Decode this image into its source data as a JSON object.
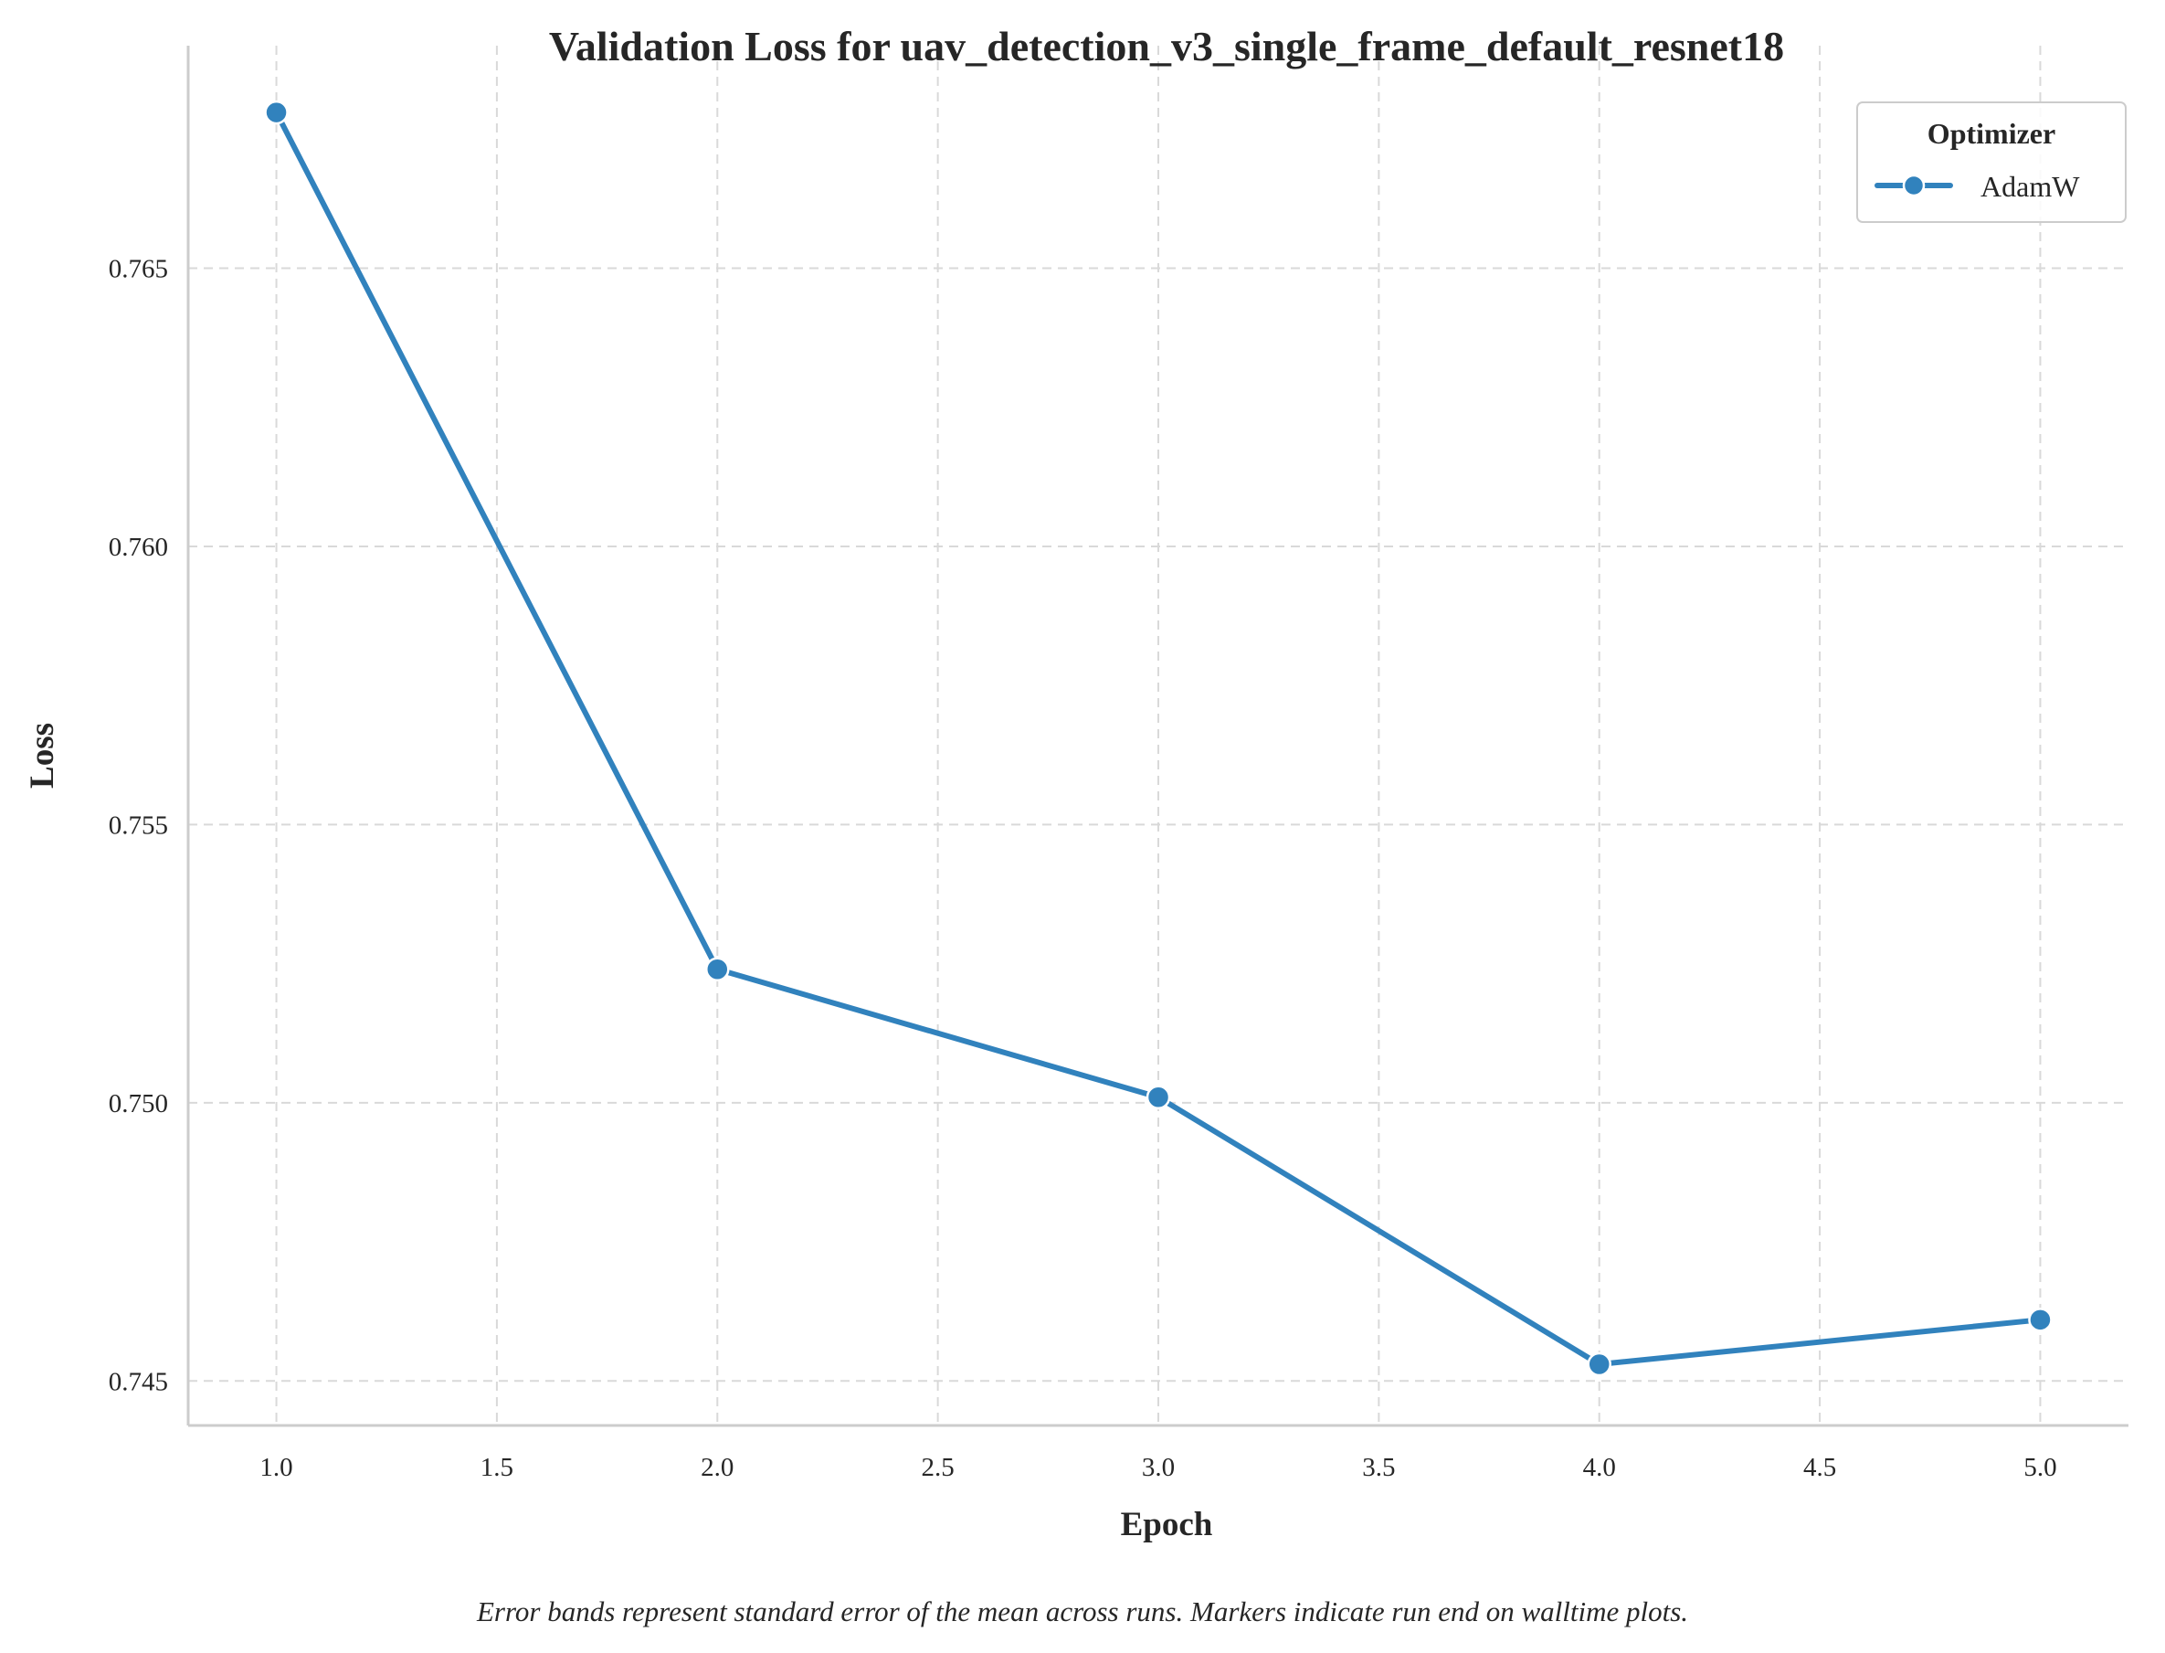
{
  "chart_data": {
    "type": "line",
    "title": "Validation Loss for uav_detection_v3_single_frame_default_resnet18",
    "xlabel": "Epoch",
    "ylabel": "Loss",
    "xlim": [
      0.8,
      5.2
    ],
    "ylim": [
      0.7442,
      0.769
    ],
    "x_ticks": [
      1.0,
      1.5,
      2.0,
      2.5,
      3.0,
      3.5,
      4.0,
      4.5,
      5.0
    ],
    "x_tick_labels": [
      "1.0",
      "1.5",
      "2.0",
      "2.5",
      "3.0",
      "3.5",
      "4.0",
      "4.5",
      "5.0"
    ],
    "y_ticks": [
      0.745,
      0.75,
      0.755,
      0.76,
      0.765
    ],
    "y_tick_labels": [
      "0.745",
      "0.750",
      "0.755",
      "0.760",
      "0.765"
    ],
    "grid": true,
    "legend": {
      "title": "Optimizer",
      "placement": "top-right"
    },
    "series": [
      {
        "name": "AdamW",
        "color": "#3182bd",
        "x": [
          1.0,
          2.0,
          3.0,
          4.0,
          5.0
        ],
        "y": [
          0.7678,
          0.7524,
          0.7501,
          0.7453,
          0.7461
        ]
      }
    ],
    "caption": "Error bands represent standard error of the mean across runs. Markers indicate run end on walltime plots."
  }
}
